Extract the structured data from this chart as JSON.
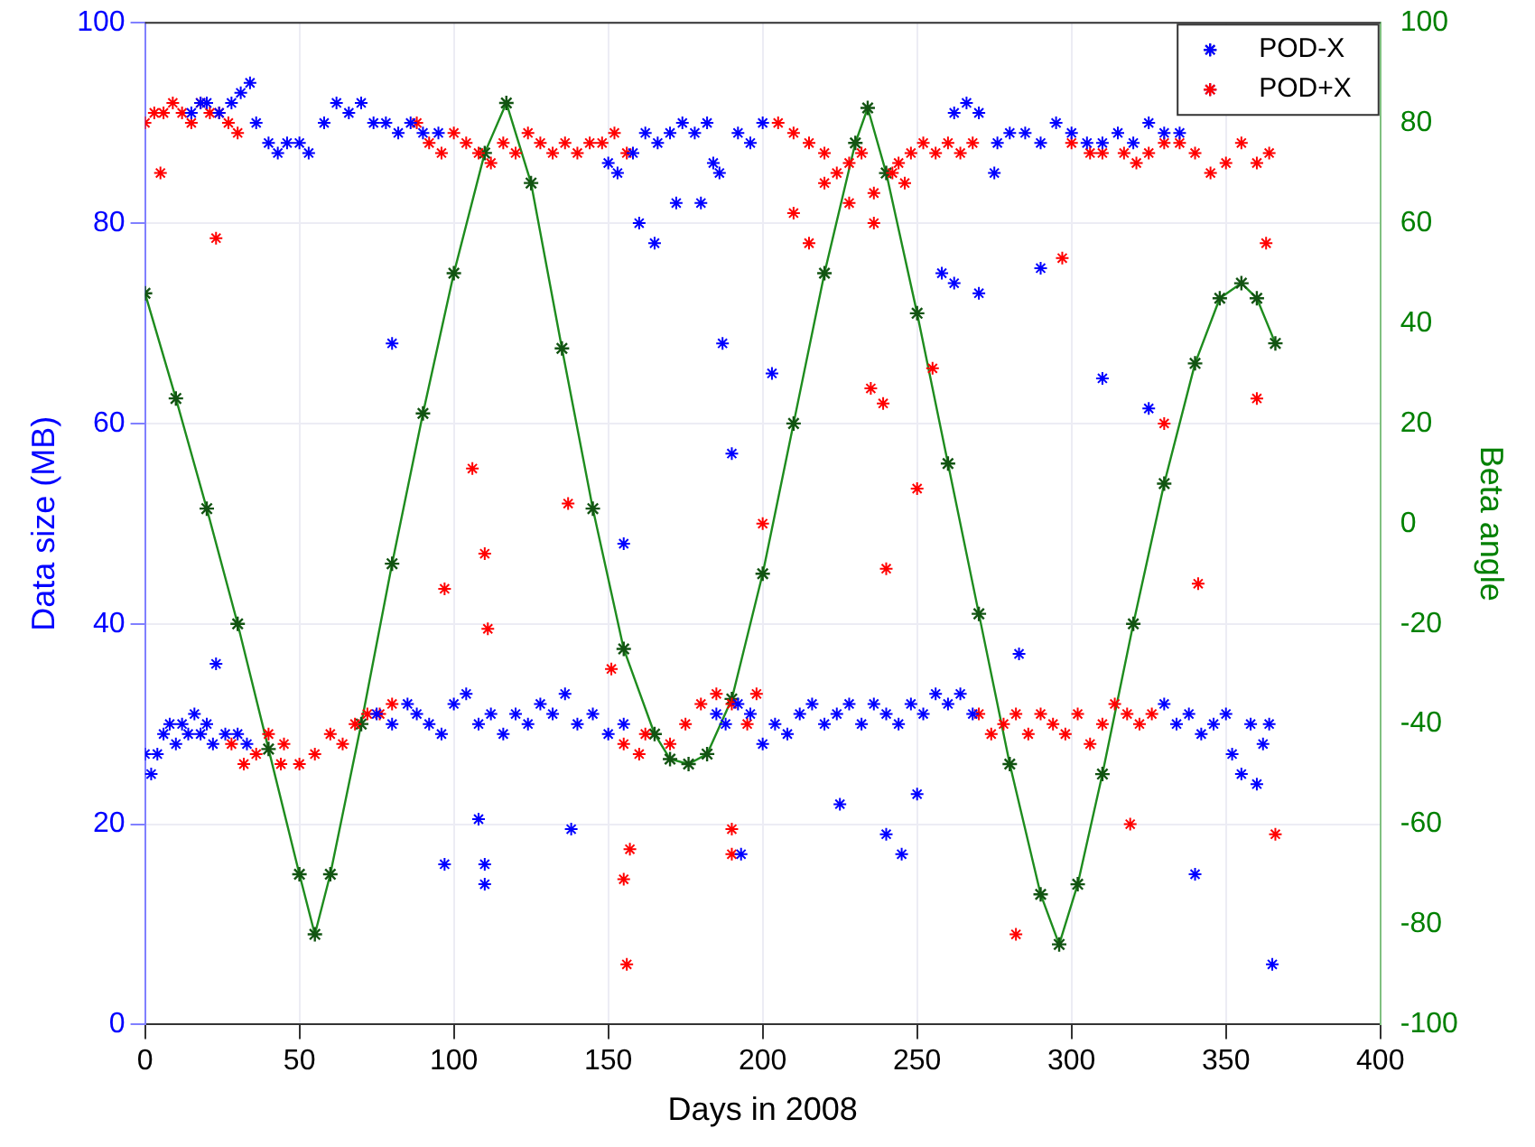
{
  "chart_data": {
    "type": "scatter",
    "xlabel": "Days in 2008",
    "ylabel": "Data size (MB)",
    "y2label": "Beta angle",
    "xlim": [
      0,
      400
    ],
    "xticks": [
      0,
      50,
      100,
      150,
      200,
      250,
      300,
      350,
      400
    ],
    "ylim": [
      0,
      100
    ],
    "yticks": [
      0,
      20,
      40,
      60,
      80,
      100
    ],
    "y2lim": [
      -100,
      100
    ],
    "y2ticks": [
      -100,
      -80,
      -60,
      -40,
      -20,
      0,
      20,
      40,
      60,
      80,
      100
    ],
    "grid": true,
    "legend": "top right",
    "marker": "cross",
    "series": [
      {
        "name": "POD-X",
        "type": "scatter",
        "color": "#0000ff",
        "x": [
          0,
          2,
          4,
          6,
          8,
          10,
          12,
          14,
          16,
          18,
          20,
          22,
          26,
          30,
          33,
          75,
          80,
          85,
          88,
          92,
          96,
          100,
          104,
          108,
          112,
          116,
          120,
          124,
          128,
          132,
          136,
          140,
          145,
          150,
          155,
          185,
          188,
          192,
          196,
          200,
          204,
          208,
          212,
          216,
          220,
          224,
          228,
          232,
          236,
          240,
          244,
          248,
          252,
          256,
          260,
          264,
          268,
          330,
          334,
          338,
          342,
          346,
          350,
          352,
          355,
          358,
          360,
          362,
          364,
          15,
          18,
          20,
          24,
          28,
          31,
          34,
          36,
          40,
          43,
          46,
          50,
          53,
          58,
          62,
          66,
          70,
          74,
          78,
          82,
          86,
          90,
          95,
          150,
          153,
          158,
          162,
          166,
          170,
          174,
          178,
          182,
          186,
          192,
          196,
          200,
          262,
          266,
          270,
          276,
          280,
          285,
          290,
          295,
          300,
          305,
          310,
          315,
          320,
          325,
          330,
          335,
          160,
          165,
          172,
          180,
          184,
          258,
          262,
          270,
          275,
          23,
          80,
          97,
          108,
          110,
          110,
          138,
          155,
          187,
          190,
          193,
          203,
          225,
          240,
          245,
          250,
          283,
          290,
          310,
          325,
          340,
          365
        ],
        "values": [
          27,
          25,
          27,
          29,
          30,
          28,
          30,
          29,
          31,
          29,
          30,
          28,
          29,
          29,
          28,
          31,
          30,
          32,
          31,
          30,
          29,
          32,
          33,
          30,
          31,
          29,
          31,
          30,
          32,
          31,
          33,
          30,
          31,
          29,
          30,
          31,
          30,
          32,
          31,
          28,
          30,
          29,
          31,
          32,
          30,
          31,
          32,
          30,
          32,
          31,
          30,
          32,
          31,
          33,
          32,
          33,
          31,
          32,
          30,
          31,
          29,
          30,
          31,
          27,
          25,
          30,
          24,
          28,
          30,
          91,
          92,
          92,
          91,
          92,
          93,
          94,
          90,
          88,
          87,
          88,
          88,
          87,
          90,
          92,
          91,
          92,
          90,
          90,
          89,
          90,
          89,
          89,
          86,
          85,
          87,
          89,
          88,
          89,
          90,
          89,
          90,
          85,
          89,
          88,
          90,
          91,
          92,
          91,
          88,
          89,
          89,
          88,
          90,
          89,
          88,
          88,
          89,
          88,
          90,
          89,
          89,
          80,
          78,
          82,
          82,
          86,
          75,
          74,
          73,
          85,
          36,
          68,
          16,
          20.5,
          16,
          14,
          19.5,
          48,
          68,
          57,
          17,
          65,
          22,
          19,
          17,
          23,
          37,
          75.5,
          64.5,
          61.5,
          15,
          6
        ]
      },
      {
        "name": "POD+X",
        "type": "scatter",
        "color": "#ff0000",
        "x": [
          0,
          3,
          6,
          9,
          12,
          15,
          18,
          21,
          24,
          27,
          30,
          88,
          92,
          96,
          100,
          104,
          108,
          112,
          116,
          120,
          124,
          128,
          132,
          136,
          140,
          144,
          148,
          152,
          156,
          205,
          210,
          215,
          220,
          224,
          228,
          232,
          236,
          242,
          244,
          248,
          252,
          256,
          260,
          264,
          268,
          300,
          306,
          310,
          317,
          321,
          325,
          330,
          335,
          340,
          345,
          350,
          355,
          360,
          364,
          210,
          215,
          220,
          228,
          236,
          246,
          28,
          32,
          36,
          40,
          45,
          50,
          55,
          60,
          64,
          68,
          72,
          76,
          80,
          155,
          160,
          162,
          170,
          175,
          180,
          185,
          190,
          195,
          198,
          270,
          274,
          278,
          282,
          286,
          290,
          294,
          298,
          302,
          306,
          310,
          314,
          318,
          322,
          326,
          5,
          23,
          44,
          97,
          106,
          110,
          111,
          137,
          151,
          155,
          156,
          157,
          190,
          190,
          200,
          235,
          239,
          240,
          250,
          255,
          282,
          297,
          319,
          330,
          341,
          360,
          363,
          366
        ],
        "values": [
          90,
          91,
          91,
          92,
          91,
          90,
          92,
          91,
          91,
          90,
          89,
          90,
          88,
          87,
          89,
          88,
          87,
          86,
          88,
          87,
          89,
          88,
          87,
          88,
          87,
          88,
          88,
          89,
          87,
          90,
          89,
          88,
          87,
          85,
          86,
          87,
          83,
          85,
          86,
          87,
          88,
          87,
          88,
          87,
          88,
          88,
          87,
          87,
          87,
          86,
          87,
          88,
          88,
          87,
          85,
          86,
          88,
          86,
          87,
          81,
          78,
          84,
          82,
          80,
          84,
          28,
          26,
          27,
          29,
          28,
          26,
          27,
          29,
          28,
          30,
          31,
          31,
          32,
          28,
          27,
          29,
          28,
          30,
          32,
          33,
          32,
          30,
          33,
          31,
          29,
          30,
          31,
          29,
          31,
          30,
          29,
          31,
          28,
          30,
          32,
          31,
          30,
          31,
          85,
          78.5,
          26,
          43.5,
          55.5,
          47,
          39.5,
          52,
          35.5,
          14.5,
          6,
          17.5,
          19.5,
          17,
          50,
          63.5,
          62,
          45.5,
          53.5,
          65.5,
          9,
          76.5,
          20,
          60,
          44,
          62.5,
          78,
          19
        ]
      },
      {
        "type": "line",
        "axis": "y2",
        "color": "#1e8c1e",
        "x": [
          0,
          10,
          20,
          30,
          40,
          50,
          55,
          60,
          70,
          80,
          90,
          100,
          110,
          117,
          125,
          135,
          145,
          155,
          165,
          170,
          176,
          182,
          190,
          200,
          210,
          220,
          230,
          234,
          240,
          250,
          260,
          270,
          280,
          290,
          296,
          302,
          310,
          320,
          330,
          340,
          348,
          355,
          360,
          366
        ],
        "values": [
          46,
          25,
          3,
          -20,
          -45,
          -70,
          -82,
          -70,
          -40,
          -8,
          22,
          50,
          74,
          84,
          68,
          35,
          3,
          -25,
          -42,
          -47,
          -48,
          -46,
          -35,
          -10,
          20,
          50,
          76,
          83,
          70,
          42,
          12,
          -18,
          -48,
          -74,
          -84,
          -72,
          -50,
          -20,
          8,
          32,
          45,
          48,
          45,
          36
        ]
      }
    ]
  }
}
